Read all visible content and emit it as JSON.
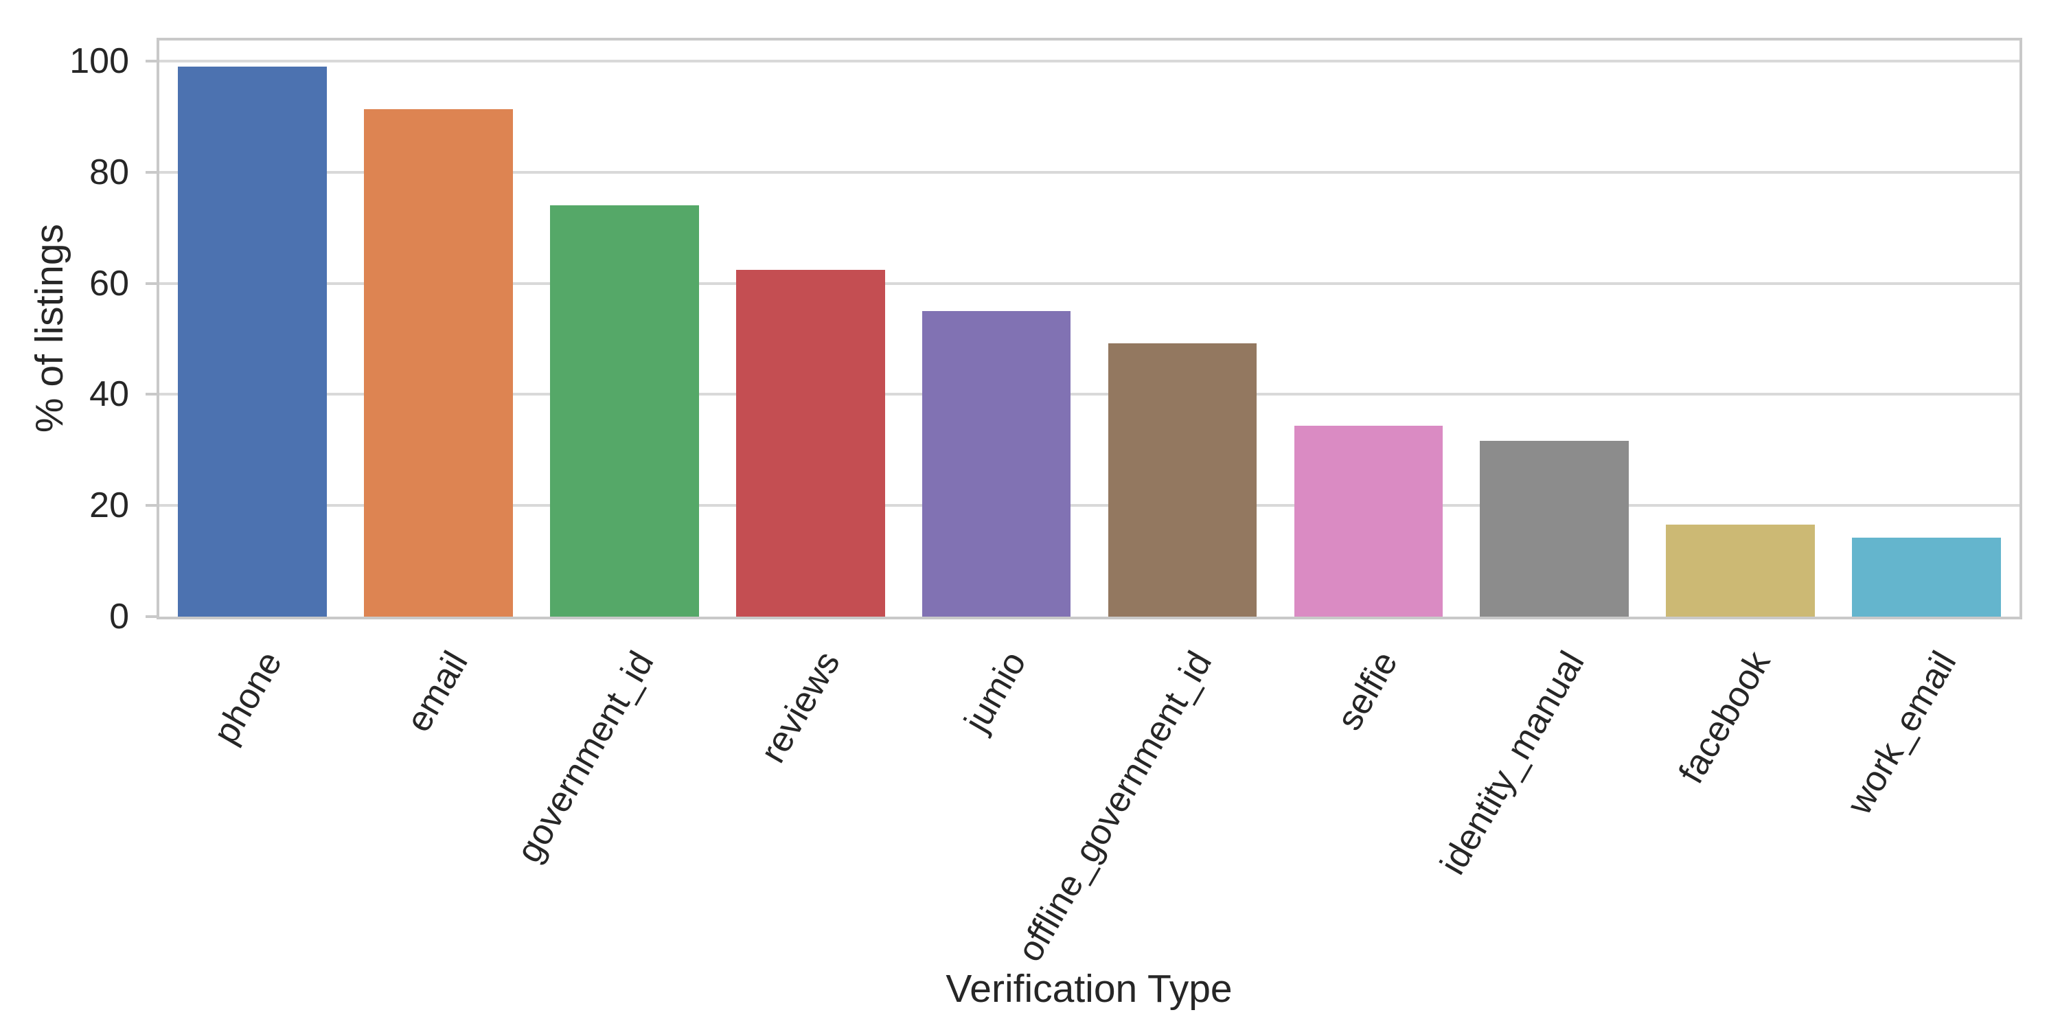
{
  "chart_data": {
    "type": "bar",
    "title": "",
    "xlabel": "Verification Type",
    "ylabel": "% of listings",
    "categories": [
      "phone",
      "email",
      "government_id",
      "reviews",
      "jumio",
      "offline_government_id",
      "selfie",
      "identity_manual",
      "facebook",
      "work_email"
    ],
    "values": [
      99.0,
      91.4,
      74.0,
      62.4,
      55.0,
      49.2,
      34.4,
      31.6,
      16.6,
      14.2
    ],
    "bar_colors": [
      "#4c72b0",
      "#dd8452",
      "#55a868",
      "#c44e52",
      "#8172b3",
      "#937860",
      "#da8bc3",
      "#8c8c8c",
      "#ccb974",
      "#64b5cd"
    ],
    "yticks": [
      0,
      20,
      40,
      60,
      80,
      100
    ],
    "ylim": [
      0,
      103.7
    ],
    "xtick_rotation_deg": 60,
    "grid": "horizontal",
    "legend": "none",
    "styles": {
      "background": "#ffffff",
      "grid_color": "#d9d9d9",
      "spine_color": "#c9c9c9",
      "text_color": "#262626",
      "bar_relative_width": 0.8
    }
  }
}
